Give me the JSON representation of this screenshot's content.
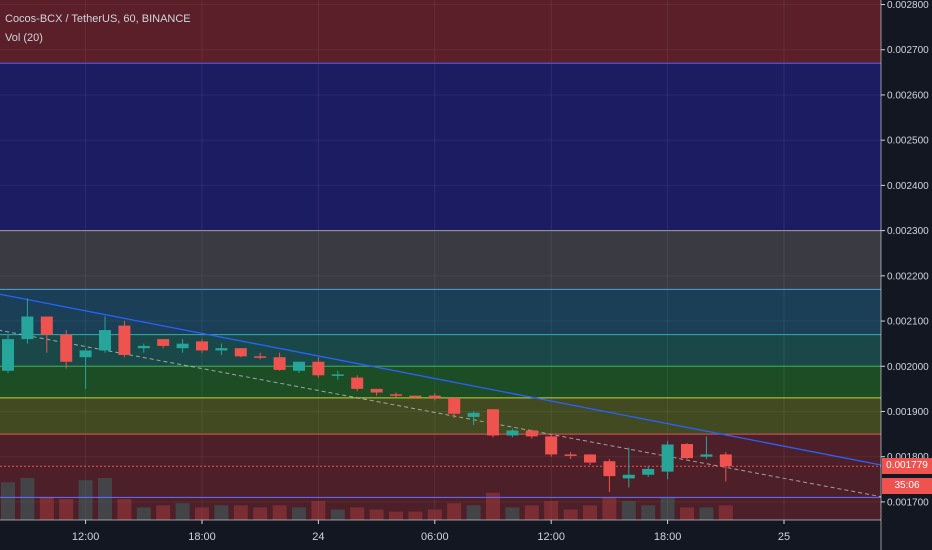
{
  "header": {
    "symbol_line": "Cocos-BCX / TetherUS, 60, BINANCE",
    "volume_label": "Vol (20)"
  },
  "price_tag": {
    "value": "0.001779",
    "countdown": "35:06"
  },
  "colors": {
    "background": "#131722",
    "up": "#26a69a",
    "down": "#ef5350",
    "trendline": "#2962ff",
    "text": "#d1d4dc"
  },
  "chart_data": {
    "type": "candlestick",
    "y_axis": {
      "ticks": [
        "0.001700",
        "0.001800",
        "0.001900",
        "0.002000",
        "0.002100",
        "0.002200",
        "0.002300",
        "0.002400",
        "0.002500",
        "0.002600",
        "0.002700",
        "0.002800"
      ],
      "range": [
        0.00166,
        0.00281
      ]
    },
    "x_axis": {
      "ticks": [
        {
          "label": "12:00",
          "index": 4
        },
        {
          "label": "18:00",
          "index": 10
        },
        {
          "label": "24",
          "index": 16
        },
        {
          "label": "06:00",
          "index": 22
        },
        {
          "label": "12:00",
          "index": 28
        },
        {
          "label": "18:00",
          "index": 34
        },
        {
          "label": "25",
          "index": 40
        }
      ]
    },
    "zones": [
      {
        "from": 0.00267,
        "to": 0.00281,
        "color": "#5a1f28"
      },
      {
        "from": 0.0023,
        "to": 0.00267,
        "color": "#1c1c63"
      },
      {
        "from": 0.00217,
        "to": 0.0023,
        "color": "#3a3a42"
      },
      {
        "from": 0.00207,
        "to": 0.00217,
        "color": "#1a3f56"
      },
      {
        "from": 0.002,
        "to": 0.00207,
        "color": "#1a4848"
      },
      {
        "from": 0.00193,
        "to": 0.002,
        "color": "#1d4d25"
      },
      {
        "from": 0.00185,
        "to": 0.00193,
        "color": "#414a20"
      },
      {
        "from": 0.00166,
        "to": 0.00185,
        "color": "#4d1f28"
      }
    ],
    "level_lines": [
      {
        "value": 0.00267,
        "color": "#5b5bff"
      },
      {
        "value": 0.0023,
        "color": "#9e9e9e"
      },
      {
        "value": 0.00217,
        "color": "#4fa3d6"
      },
      {
        "value": 0.00207,
        "color": "#2bb3a6"
      },
      {
        "value": 0.002,
        "color": "#39b54a"
      },
      {
        "value": 0.00193,
        "color": "#c9d13a"
      },
      {
        "value": 0.00185,
        "color": "#e0565b"
      },
      {
        "value": 0.00171,
        "color": "#6c6cff"
      }
    ],
    "trendline": {
      "from": {
        "index": -0.5,
        "value": 0.00216
      },
      "to": {
        "index": 45.2,
        "value": 0.00178
      }
    },
    "dashed_line": {
      "from": {
        "index": -0.5,
        "value": 0.00208
      },
      "to": {
        "index": 45.2,
        "value": 0.00171
      }
    },
    "last_price": 0.001779,
    "candles": [
      {
        "o": 0.00199,
        "h": 0.00207,
        "l": 0.001985,
        "c": 0.00206,
        "v": 0.9
      },
      {
        "o": 0.00206,
        "h": 0.00215,
        "l": 0.00205,
        "c": 0.00211,
        "v": 1.0
      },
      {
        "o": 0.00211,
        "h": 0.0021,
        "l": 0.00203,
        "c": 0.00207,
        "v": 0.55
      },
      {
        "o": 0.00207,
        "h": 0.00208,
        "l": 0.001995,
        "c": 0.00201,
        "v": 0.5
      },
      {
        "o": 0.00202,
        "h": 0.00204,
        "l": 0.00195,
        "c": 0.002035,
        "v": 0.95
      },
      {
        "o": 0.002035,
        "h": 0.00211,
        "l": 0.00203,
        "c": 0.00208,
        "v": 1.0
      },
      {
        "o": 0.00209,
        "h": 0.0021,
        "l": 0.00202,
        "c": 0.002025,
        "v": 0.5
      },
      {
        "o": 0.00204,
        "h": 0.00205,
        "l": 0.00203,
        "c": 0.002045,
        "v": 0.3
      },
      {
        "o": 0.00206,
        "h": 0.00206,
        "l": 0.00204,
        "c": 0.002045,
        "v": 0.35
      },
      {
        "o": 0.00204,
        "h": 0.00206,
        "l": 0.00203,
        "c": 0.00205,
        "v": 0.4
      },
      {
        "o": 0.002055,
        "h": 0.00206,
        "l": 0.00203,
        "c": 0.002035,
        "v": 0.3
      },
      {
        "o": 0.002035,
        "h": 0.00205,
        "l": 0.002025,
        "c": 0.00204,
        "v": 0.35
      },
      {
        "o": 0.00204,
        "h": 0.00204,
        "l": 0.00202,
        "c": 0.002022,
        "v": 0.35
      },
      {
        "o": 0.002022,
        "h": 0.00203,
        "l": 0.002015,
        "c": 0.00202,
        "v": 0.3
      },
      {
        "o": 0.00202,
        "h": 0.00203,
        "l": 0.00199,
        "c": 0.001992,
        "v": 0.35
      },
      {
        "o": 0.00199,
        "h": 0.00201,
        "l": 0.001985,
        "c": 0.00201,
        "v": 0.3
      },
      {
        "o": 0.00201,
        "h": 0.00202,
        "l": 0.001975,
        "c": 0.00198,
        "v": 0.45
      },
      {
        "o": 0.00198,
        "h": 0.00199,
        "l": 0.00197,
        "c": 0.001982,
        "v": 0.25
      },
      {
        "o": 0.001975,
        "h": 0.00198,
        "l": 0.001945,
        "c": 0.00195,
        "v": 0.3
      },
      {
        "o": 0.00195,
        "h": 0.00195,
        "l": 0.001935,
        "c": 0.001942,
        "v": 0.25
      },
      {
        "o": 0.001938,
        "h": 0.001942,
        "l": 0.001932,
        "c": 0.001936,
        "v": 0.2
      },
      {
        "o": 0.001935,
        "h": 0.001935,
        "l": 0.00193,
        "c": 0.001933,
        "v": 0.2
      },
      {
        "o": 0.001935,
        "h": 0.00194,
        "l": 0.001925,
        "c": 0.00193,
        "v": 0.25
      },
      {
        "o": 0.00193,
        "h": 0.001932,
        "l": 0.001885,
        "c": 0.001895,
        "v": 0.4
      },
      {
        "o": 0.001888,
        "h": 0.0019,
        "l": 0.00187,
        "c": 0.001897,
        "v": 0.35
      },
      {
        "o": 0.001905,
        "h": 0.001905,
        "l": 0.001843,
        "c": 0.001847,
        "v": 0.65
      },
      {
        "o": 0.001847,
        "h": 0.001862,
        "l": 0.001843,
        "c": 0.001858,
        "v": 0.3
      },
      {
        "o": 0.001858,
        "h": 0.00186,
        "l": 0.00184,
        "c": 0.001845,
        "v": 0.35
      },
      {
        "o": 0.001845,
        "h": 0.00185,
        "l": 0.0018,
        "c": 0.001805,
        "v": 0.45
      },
      {
        "o": 0.001805,
        "h": 0.00181,
        "l": 0.001795,
        "c": 0.001803,
        "v": 0.25
      },
      {
        "o": 0.001805,
        "h": 0.001805,
        "l": 0.001782,
        "c": 0.001787,
        "v": 0.35
      },
      {
        "o": 0.00179,
        "h": 0.001795,
        "l": 0.001722,
        "c": 0.001757,
        "v": 0.55
      },
      {
        "o": 0.001752,
        "h": 0.00182,
        "l": 0.001732,
        "c": 0.00176,
        "v": 0.45
      },
      {
        "o": 0.00176,
        "h": 0.00178,
        "l": 0.001755,
        "c": 0.001773,
        "v": 0.35
      },
      {
        "o": 0.001767,
        "h": 0.001835,
        "l": 0.00175,
        "c": 0.001827,
        "v": 0.55
      },
      {
        "o": 0.001828,
        "h": 0.00183,
        "l": 0.001795,
        "c": 0.001797,
        "v": 0.3
      },
      {
        "o": 0.0018,
        "h": 0.001845,
        "l": 0.001795,
        "c": 0.001805,
        "v": 0.3
      },
      {
        "o": 0.001805,
        "h": 0.00181,
        "l": 0.001745,
        "c": 0.001779,
        "v": 0.35
      }
    ]
  }
}
